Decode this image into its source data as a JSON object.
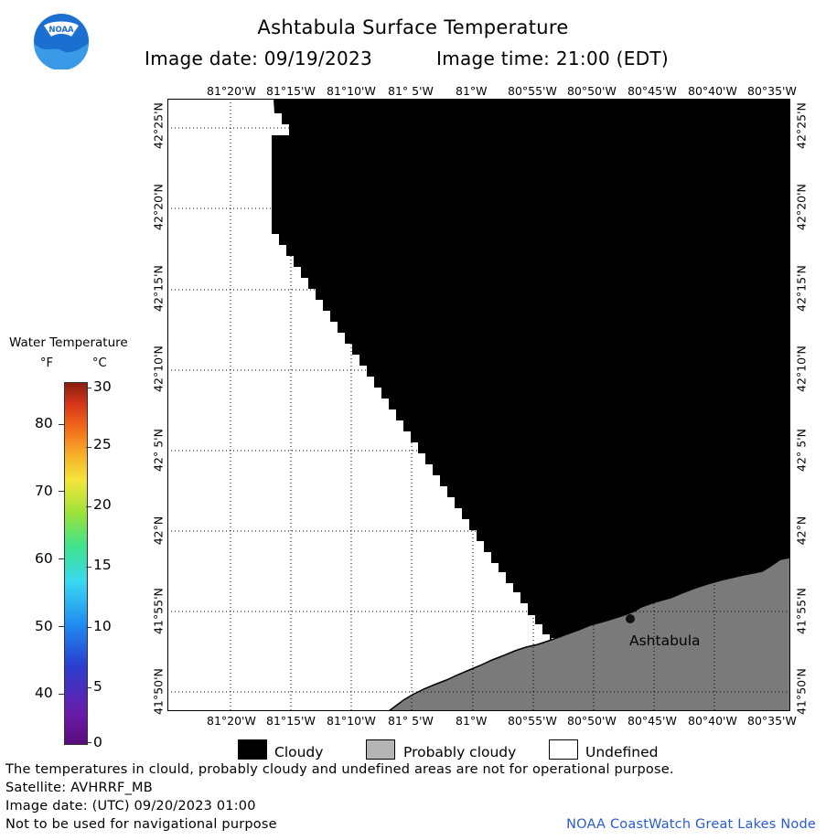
{
  "header": {
    "title": "Ashtabula Surface Temperature",
    "image_date": "Image date: 09/19/2023",
    "image_time": "Image time: 21:00 (EDT)"
  },
  "logo": {
    "text": "NOAA"
  },
  "map": {
    "longitude_labels": [
      "81°20'W",
      "81°15'W",
      "81°10'W",
      "81° 5'W",
      "81°W",
      "80°55'W",
      "80°50'W",
      "80°45'W",
      "80°40'W",
      "80°35'W"
    ],
    "latitude_labels": [
      "42°25'N",
      "42°20'N",
      "42°15'N",
      "42°10'N",
      "42° 5'N",
      "42°N",
      "41°55'N",
      "41°50'N"
    ],
    "city_label": "Ashtabula",
    "colors": {
      "cloudy": "#000000",
      "probably_cloudy": "#7a7a7a",
      "undefined": "#ffffff"
    }
  },
  "legend": {
    "title": "Water Temperature",
    "unit_f": "°F",
    "unit_c": "°C",
    "fahrenheit_ticks": [
      "80",
      "70",
      "60",
      "50",
      "40"
    ],
    "celsius_ticks": [
      "30",
      "25",
      "20",
      "15",
      "10",
      "5",
      "0"
    ]
  },
  "key": {
    "cloudy": "Cloudy",
    "probably_cloudy": "Probably cloudy",
    "undefined": "Undefined"
  },
  "footer": {
    "note": "The temperatures in clould, probably cloudy and undefined areas are not for operational purpose.",
    "satellite": "Satellite: AVHRRF_MB",
    "utc_date": "Image date: (UTC) 09/20/2023  01:00",
    "disclaimer": "Not to be used for navigational purpose",
    "credit": "NOAA CoastWatch Great Lakes Node"
  }
}
